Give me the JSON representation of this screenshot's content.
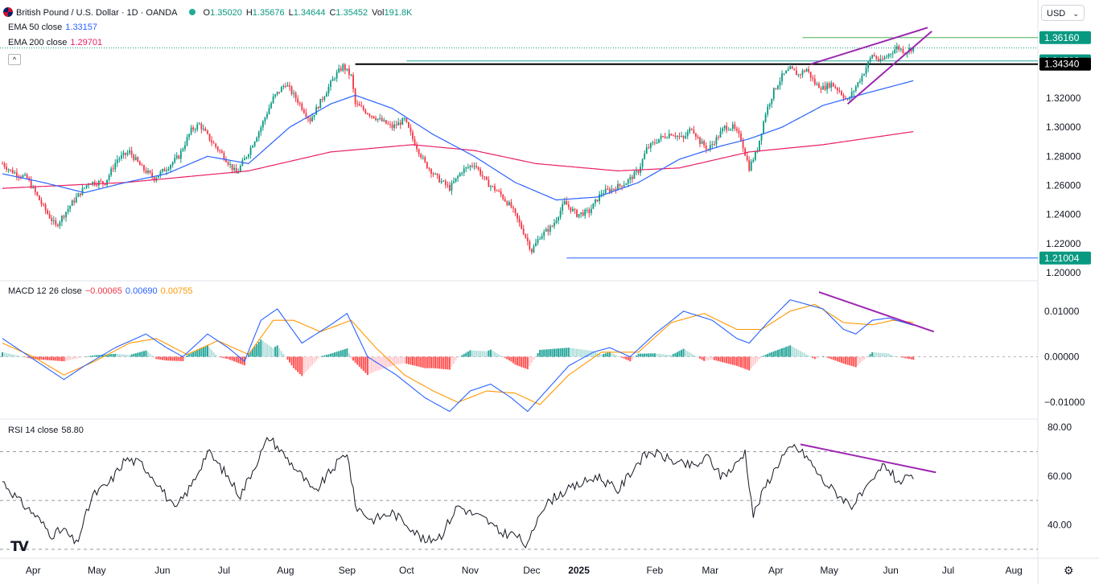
{
  "header": {
    "symbol_title": "British Pound / U.S. Dollar · 1D · OANDA",
    "ohlc": [
      {
        "k": "O",
        "v": "1.35020"
      },
      {
        "k": "H",
        "v": "1.35676"
      },
      {
        "k": "L",
        "v": "1.34644"
      },
      {
        "k": "C",
        "v": "1.35452"
      }
    ],
    "vol_label": "Vol",
    "vol_value": "191.8K",
    "currency_selector": "USD"
  },
  "indicators": {
    "ema50": {
      "label": "EMA 50 close",
      "value": "1.33157",
      "color": "#2962ff"
    },
    "ema200": {
      "label": "EMA 200 close",
      "value": "1.29701",
      "color": "#e91e63"
    },
    "macd": {
      "label": "MACD 12 26 close",
      "hist": "−0.00065",
      "macd": "0.00690",
      "signal": "0.00755",
      "hist_color": "#f23645",
      "macd_color": "#2962ff",
      "signal_color": "#ff9800"
    },
    "rsi": {
      "label": "RSI 14 close",
      "value": "58.80"
    }
  },
  "colors": {
    "up": "#089981",
    "down": "#f23645",
    "trendline": "#9c27b0",
    "level_line": "#000000",
    "support_line": "#2962ff",
    "high_line": "#4caf50"
  },
  "chart_data": [
    {
      "type": "candlestick",
      "title": "British Pound / U.S. Dollar · 1D · OANDA",
      "x_ticks": [
        "Apr",
        "May",
        "Jun",
        "Jul",
        "Aug",
        "Sep",
        "Oct",
        "Nov",
        "Dec",
        "2025",
        "Feb",
        "Mar",
        "Apr",
        "May",
        "Jun",
        "Jul",
        "Aug"
      ],
      "y_ticks": [
        "1.32000",
        "1.30000",
        "1.28000",
        "1.26000",
        "1.24000",
        "1.22000",
        "1.20000"
      ],
      "ylim": [
        1.195,
        1.372
      ],
      "price_labels": [
        {
          "text": "1.36160",
          "value": 1.3616,
          "color": "#089981"
        },
        {
          "text": "1.34566",
          "value": 1.34566,
          "color": "#089981"
        },
        {
          "text": "1.34340",
          "value": 1.3434,
          "color": "#000000"
        },
        {
          "text": "1.21004",
          "value": 1.21004,
          "color": "#089981"
        }
      ],
      "anchors": [
        [
          0,
          1.275
        ],
        [
          4,
          1.27
        ],
        [
          12,
          1.265
        ],
        [
          20,
          1.245
        ],
        [
          26,
          1.232
        ],
        [
          34,
          1.248
        ],
        [
          42,
          1.262
        ],
        [
          50,
          1.262
        ],
        [
          56,
          1.278
        ],
        [
          62,
          1.283
        ],
        [
          68,
          1.272
        ],
        [
          74,
          1.265
        ],
        [
          80,
          1.272
        ],
        [
          86,
          1.28
        ],
        [
          92,
          1.298
        ],
        [
          96,
          1.302
        ],
        [
          102,
          1.29
        ],
        [
          108,
          1.28
        ],
        [
          114,
          1.268
        ],
        [
          120,
          1.283
        ],
        [
          126,
          1.3
        ],
        [
          132,
          1.32
        ],
        [
          138,
          1.33
        ],
        [
          144,
          1.318
        ],
        [
          150,
          1.305
        ],
        [
          156,
          1.32
        ],
        [
          162,
          1.335
        ],
        [
          166,
          1.342
        ],
        [
          170,
          1.335
        ],
        [
          172,
          1.316
        ],
        [
          178,
          1.31
        ],
        [
          184,
          1.305
        ],
        [
          190,
          1.3
        ],
        [
          196,
          1.305
        ],
        [
          200,
          1.292
        ],
        [
          206,
          1.275
        ],
        [
          212,
          1.265
        ],
        [
          218,
          1.258
        ],
        [
          224,
          1.27
        ],
        [
          230,
          1.275
        ],
        [
          236,
          1.262
        ],
        [
          242,
          1.255
        ],
        [
          248,
          1.245
        ],
        [
          254,
          1.228
        ],
        [
          258,
          1.215
        ],
        [
          262,
          1.225
        ],
        [
          268,
          1.232
        ],
        [
          274,
          1.248
        ],
        [
          280,
          1.24
        ],
        [
          286,
          1.242
        ],
        [
          292,
          1.255
        ],
        [
          298,
          1.258
        ],
        [
          304,
          1.262
        ],
        [
          310,
          1.27
        ],
        [
          314,
          1.285
        ],
        [
          320,
          1.292
        ],
        [
          326,
          1.296
        ],
        [
          332,
          1.292
        ],
        [
          336,
          1.3
        ],
        [
          340,
          1.29
        ],
        [
          344,
          1.285
        ],
        [
          348,
          1.292
        ],
        [
          352,
          1.3
        ],
        [
          356,
          1.3
        ],
        [
          360,
          1.292
        ],
        [
          364,
          1.272
        ],
        [
          368,
          1.285
        ],
        [
          372,
          1.31
        ],
        [
          376,
          1.325
        ],
        [
          380,
          1.335
        ],
        [
          384,
          1.34
        ],
        [
          388,
          1.336
        ],
        [
          392,
          1.34
        ],
        [
          396,
          1.33
        ],
        [
          400,
          1.327
        ],
        [
          404,
          1.33
        ],
        [
          408,
          1.325
        ],
        [
          412,
          1.318
        ],
        [
          416,
          1.328
        ],
        [
          420,
          1.338
        ],
        [
          424,
          1.35
        ],
        [
          428,
          1.345
        ],
        [
          432,
          1.35
        ],
        [
          436,
          1.355
        ],
        [
          440,
          1.352
        ],
        [
          444,
          1.355
        ]
      ],
      "ema50_anchors": [
        [
          0,
          1.268
        ],
        [
          20,
          1.262
        ],
        [
          40,
          1.255
        ],
        [
          60,
          1.262
        ],
        [
          80,
          1.268
        ],
        [
          100,
          1.28
        ],
        [
          120,
          1.275
        ],
        [
          140,
          1.3
        ],
        [
          160,
          1.316
        ],
        [
          172,
          1.322
        ],
        [
          190,
          1.313
        ],
        [
          210,
          1.295
        ],
        [
          230,
          1.28
        ],
        [
          250,
          1.262
        ],
        [
          270,
          1.25
        ],
        [
          290,
          1.252
        ],
        [
          310,
          1.262
        ],
        [
          330,
          1.278
        ],
        [
          350,
          1.287
        ],
        [
          364,
          1.292
        ],
        [
          380,
          1.3
        ],
        [
          400,
          1.315
        ],
        [
          420,
          1.323
        ],
        [
          444,
          1.332
        ]
      ],
      "ema200_anchors": [
        [
          0,
          1.258
        ],
        [
          60,
          1.262
        ],
        [
          120,
          1.27
        ],
        [
          160,
          1.283
        ],
        [
          200,
          1.288
        ],
        [
          230,
          1.284
        ],
        [
          260,
          1.275
        ],
        [
          300,
          1.27
        ],
        [
          330,
          1.272
        ],
        [
          364,
          1.283
        ],
        [
          400,
          1.288
        ],
        [
          444,
          1.297
        ]
      ]
    },
    {
      "type": "line",
      "title": "MACD 12 26 close",
      "y_ticks": [
        "0.01000",
        "0.00000",
        "−0.01000"
      ],
      "ylim": [
        -0.0135,
        0.0165
      ],
      "macd_anchors": [
        [
          0,
          0.004
        ],
        [
          10,
          0.001
        ],
        [
          20,
          -0.002
        ],
        [
          30,
          -0.005
        ],
        [
          40,
          -0.002
        ],
        [
          55,
          0.002
        ],
        [
          70,
          0.005
        ],
        [
          80,
          0.002
        ],
        [
          88,
          0.0
        ],
        [
          100,
          0.005
        ],
        [
          110,
          0.002
        ],
        [
          118,
          -0.001
        ],
        [
          126,
          0.008
        ],
        [
          134,
          0.0105
        ],
        [
          146,
          0.003
        ],
        [
          160,
          0.007
        ],
        [
          168,
          0.0095
        ],
        [
          178,
          0.0
        ],
        [
          192,
          -0.004
        ],
        [
          206,
          -0.009
        ],
        [
          218,
          -0.012
        ],
        [
          228,
          -0.0075
        ],
        [
          238,
          -0.006
        ],
        [
          248,
          -0.009
        ],
        [
          256,
          -0.012
        ],
        [
          264,
          -0.008
        ],
        [
          276,
          -0.002
        ],
        [
          288,
          0.001
        ],
        [
          296,
          0.002
        ],
        [
          306,
          0.0
        ],
        [
          318,
          0.005
        ],
        [
          332,
          0.01
        ],
        [
          346,
          0.008
        ],
        [
          358,
          0.004
        ],
        [
          364,
          0.003
        ],
        [
          374,
          0.008
        ],
        [
          384,
          0.0125
        ],
        [
          392,
          0.0115
        ],
        [
          400,
          0.0105
        ],
        [
          410,
          0.006
        ],
        [
          416,
          0.005
        ],
        [
          424,
          0.008
        ],
        [
          432,
          0.0085
        ],
        [
          444,
          0.0069
        ]
      ],
      "signal_anchors": [
        [
          0,
          0.003
        ],
        [
          15,
          0.0
        ],
        [
          30,
          -0.004
        ],
        [
          45,
          -0.001
        ],
        [
          62,
          0.003
        ],
        [
          75,
          0.004
        ],
        [
          90,
          0.0005
        ],
        [
          105,
          0.0035
        ],
        [
          120,
          0.0005
        ],
        [
          132,
          0.008
        ],
        [
          142,
          0.008
        ],
        [
          155,
          0.0055
        ],
        [
          170,
          0.008
        ],
        [
          182,
          0.002
        ],
        [
          196,
          -0.004
        ],
        [
          210,
          -0.0075
        ],
        [
          222,
          -0.01
        ],
        [
          236,
          -0.0075
        ],
        [
          250,
          -0.008
        ],
        [
          262,
          -0.0105
        ],
        [
          276,
          -0.004
        ],
        [
          292,
          0.001
        ],
        [
          310,
          0.001
        ],
        [
          326,
          0.0075
        ],
        [
          342,
          0.0095
        ],
        [
          358,
          0.006
        ],
        [
          370,
          0.006
        ],
        [
          384,
          0.01
        ],
        [
          396,
          0.0115
        ],
        [
          410,
          0.0075
        ],
        [
          424,
          0.007
        ],
        [
          434,
          0.008
        ],
        [
          444,
          0.00755
        ]
      ]
    },
    {
      "type": "line",
      "title": "RSI 14 close",
      "y_ticks": [
        "80.00",
        "60.00",
        "40.00"
      ],
      "ylim": [
        27,
        83
      ],
      "rsi_anchors": [
        [
          0,
          58
        ],
        [
          8,
          50
        ],
        [
          16,
          44
        ],
        [
          24,
          36
        ],
        [
          30,
          38
        ],
        [
          36,
          32
        ],
        [
          44,
          52
        ],
        [
          52,
          57
        ],
        [
          60,
          67
        ],
        [
          68,
          65
        ],
        [
          76,
          57
        ],
        [
          84,
          46
        ],
        [
          92,
          56
        ],
        [
          100,
          70
        ],
        [
          108,
          62
        ],
        [
          116,
          52
        ],
        [
          124,
          66
        ],
        [
          130,
          76
        ],
        [
          138,
          68
        ],
        [
          146,
          60
        ],
        [
          152,
          53
        ],
        [
          160,
          62
        ],
        [
          168,
          70
        ],
        [
          172,
          48
        ],
        [
          180,
          42
        ],
        [
          190,
          45
        ],
        [
          198,
          40
        ],
        [
          206,
          33
        ],
        [
          214,
          36
        ],
        [
          222,
          48
        ],
        [
          228,
          45
        ],
        [
          236,
          42
        ],
        [
          242,
          37
        ],
        [
          250,
          36
        ],
        [
          256,
          31
        ],
        [
          262,
          46
        ],
        [
          270,
          52
        ],
        [
          280,
          56
        ],
        [
          290,
          60
        ],
        [
          300,
          54
        ],
        [
          310,
          66
        ],
        [
          316,
          70
        ],
        [
          322,
          68
        ],
        [
          330,
          65
        ],
        [
          338,
          64
        ],
        [
          344,
          68
        ],
        [
          350,
          60
        ],
        [
          356,
          63
        ],
        [
          362,
          70
        ],
        [
          366,
          44
        ],
        [
          372,
          56
        ],
        [
          380,
          68
        ],
        [
          386,
          72
        ],
        [
          392,
          68
        ],
        [
          400,
          58
        ],
        [
          408,
          52
        ],
        [
          414,
          48
        ],
        [
          422,
          55
        ],
        [
          430,
          65
        ],
        [
          436,
          58
        ],
        [
          444,
          58.8
        ]
      ]
    }
  ],
  "levels": {
    "a": {
      "value": 1.3434,
      "color": "#000000"
    },
    "b": {
      "value": 1.3616,
      "color": "#4caf50"
    },
    "c": {
      "value": 1.21004,
      "color": "#2962ff"
    }
  }
}
